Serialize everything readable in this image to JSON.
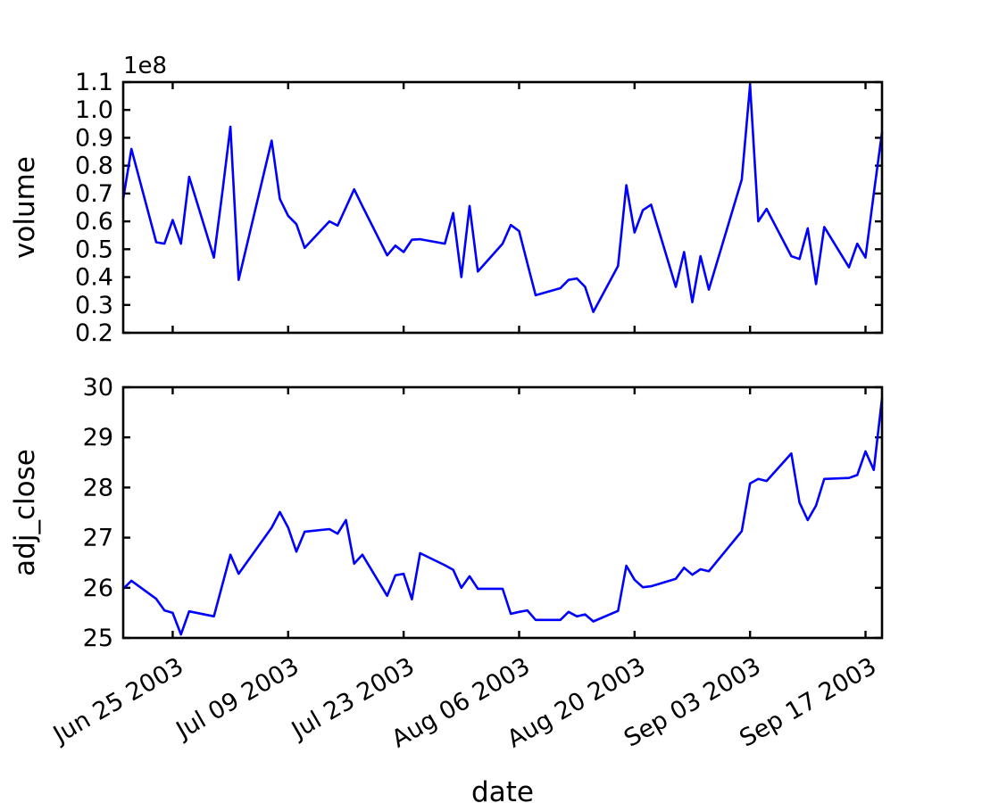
{
  "figure": {
    "background": "#ffffff",
    "axis_color": "#000000",
    "line_color": "#0000ff"
  },
  "chart_data": [
    {
      "type": "line",
      "series_name": "volume",
      "ylabel": "volume",
      "offset_text": "1e8",
      "y_unit": "1e8",
      "ylim": [
        0.2,
        1.1
      ],
      "ytick_values": [
        1.1,
        1.0,
        0.9,
        0.8,
        0.7,
        0.6,
        0.5,
        0.4,
        0.3,
        0.2
      ],
      "ytick_labels": [
        "1.1",
        "1.0",
        "0.9",
        "0.8",
        "0.7",
        "0.6",
        "0.5",
        "0.4",
        "0.3",
        "0.2"
      ],
      "grid": false,
      "legend": null,
      "values": [
        0.68,
        0.86,
        0.525,
        0.52,
        0.605,
        0.52,
        0.76,
        0.47,
        0.7,
        0.94,
        0.39,
        0.89,
        0.68,
        0.62,
        0.59,
        0.505,
        0.6,
        0.585,
        0.65,
        0.715,
        0.655,
        0.478,
        0.513,
        0.49,
        0.534,
        0.536,
        0.52,
        0.63,
        0.4,
        0.655,
        0.42,
        0.52,
        0.587,
        0.565,
        0.45,
        0.335,
        0.36,
        0.39,
        0.395,
        0.365,
        0.275,
        0.44,
        0.73,
        0.56,
        0.64,
        0.66,
        0.365,
        0.49,
        0.31,
        0.475,
        0.355,
        0.75,
        1.09,
        0.6,
        0.645,
        0.475,
        0.465,
        0.575,
        0.375,
        0.58,
        0.435,
        0.52,
        0.47,
        0.7,
        0.92
      ]
    },
    {
      "type": "line",
      "series_name": "adj_close",
      "ylabel": "adj_close",
      "xlabel": "date",
      "ylim": [
        25,
        30
      ],
      "ytick_values": [
        30,
        29,
        28,
        27,
        26,
        25
      ],
      "ytick_labels": [
        "30",
        "29",
        "28",
        "27",
        "26",
        "25"
      ],
      "grid": false,
      "legend": null,
      "values": [
        25.98,
        26.14,
        25.78,
        25.55,
        25.5,
        25.07,
        25.53,
        25.43,
        26.05,
        26.66,
        26.28,
        27.2,
        27.51,
        27.2,
        26.72,
        27.12,
        27.17,
        27.08,
        27.35,
        26.48,
        26.66,
        25.84,
        26.25,
        26.28,
        25.77,
        26.69,
        26.45,
        26.36,
        26.0,
        26.23,
        25.98,
        25.98,
        25.48,
        25.52,
        25.55,
        25.36,
        25.36,
        25.52,
        25.43,
        25.47,
        25.33,
        25.54,
        26.44,
        26.16,
        26.01,
        26.03,
        26.18,
        26.4,
        26.26,
        26.37,
        26.33,
        27.13,
        28.08,
        28.17,
        28.13,
        28.68,
        27.7,
        27.35,
        27.64,
        28.17,
        28.19,
        28.25,
        28.72,
        28.35,
        29.78
      ]
    }
  ],
  "x_axis": {
    "label": "date",
    "dates": [
      "2003-06-19",
      "2003-06-20",
      "2003-06-23",
      "2003-06-24",
      "2003-06-25",
      "2003-06-26",
      "2003-06-27",
      "2003-06-30",
      "2003-07-01",
      "2003-07-02",
      "2003-07-03",
      "2003-07-07",
      "2003-07-08",
      "2003-07-09",
      "2003-07-10",
      "2003-07-11",
      "2003-07-14",
      "2003-07-15",
      "2003-07-16",
      "2003-07-17",
      "2003-07-18",
      "2003-07-21",
      "2003-07-22",
      "2003-07-23",
      "2003-07-24",
      "2003-07-25",
      "2003-07-28",
      "2003-07-29",
      "2003-07-30",
      "2003-07-31",
      "2003-08-01",
      "2003-08-04",
      "2003-08-05",
      "2003-08-06",
      "2003-08-07",
      "2003-08-08",
      "2003-08-11",
      "2003-08-12",
      "2003-08-13",
      "2003-08-14",
      "2003-08-15",
      "2003-08-18",
      "2003-08-19",
      "2003-08-20",
      "2003-08-21",
      "2003-08-22",
      "2003-08-25",
      "2003-08-26",
      "2003-08-27",
      "2003-08-28",
      "2003-08-29",
      "2003-09-02",
      "2003-09-03",
      "2003-09-04",
      "2003-09-05",
      "2003-09-08",
      "2003-09-09",
      "2003-09-10",
      "2003-09-11",
      "2003-09-12",
      "2003-09-15",
      "2003-09-16",
      "2003-09-17",
      "2003-09-18",
      "2003-09-19"
    ],
    "day_offsets": [
      0,
      1,
      4,
      5,
      6,
      7,
      8,
      11,
      12,
      13,
      14,
      18,
      19,
      20,
      21,
      22,
      25,
      26,
      27,
      28,
      29,
      32,
      33,
      34,
      35,
      36,
      39,
      40,
      41,
      42,
      43,
      46,
      47,
      48,
      49,
      50,
      53,
      54,
      55,
      56,
      57,
      60,
      61,
      62,
      63,
      64,
      67,
      68,
      69,
      70,
      71,
      75,
      76,
      77,
      78,
      81,
      82,
      83,
      84,
      85,
      88,
      89,
      90,
      91,
      92
    ],
    "offset_range": [
      0,
      92
    ],
    "xtick_labels": [
      "Jun 25 2003",
      "Jul 09 2003",
      "Jul 23 2003",
      "Aug 06 2003",
      "Aug 20 2003",
      "Sep 03 2003",
      "Sep 17 2003"
    ],
    "xtick_day_offsets": [
      6,
      20,
      34,
      48,
      62,
      76,
      90
    ],
    "xtick_rotation_deg": 30
  }
}
